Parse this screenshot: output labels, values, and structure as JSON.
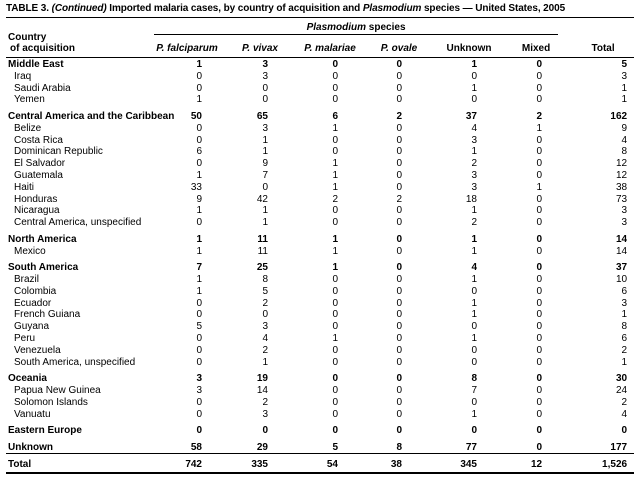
{
  "title": {
    "t1": "TABLE 3. ",
    "continued": "(Continued)",
    "t2": " Imported malaria cases, by country of acquisition and ",
    "genus": "Plasmodium",
    "t3": " species — United States, 2005"
  },
  "header": {
    "country_label_line1": "Country",
    "country_label_line2": "of acquisition",
    "species_group_label_genus": "Plasmodium",
    "species_group_label_rest": " species",
    "columns": [
      "P. falciparum",
      "P. vivax",
      "P. malariae",
      "P. ovale",
      "Unknown",
      "Mixed",
      "Total"
    ]
  },
  "rows": [
    {
      "label": "Middle East",
      "values": [
        "1",
        "3",
        "0",
        "0",
        "1",
        "0",
        "5"
      ],
      "bold": true,
      "first": true,
      "section_start": false,
      "indent": false,
      "total_row": false
    },
    {
      "label": "Iraq",
      "values": [
        "0",
        "3",
        "0",
        "0",
        "0",
        "0",
        "3"
      ],
      "bold": false,
      "first": false,
      "section_start": false,
      "indent": true,
      "total_row": false
    },
    {
      "label": "Saudi Arabia",
      "values": [
        "0",
        "0",
        "0",
        "0",
        "1",
        "0",
        "1"
      ],
      "bold": false,
      "first": false,
      "section_start": false,
      "indent": true,
      "total_row": false
    },
    {
      "label": "Yemen",
      "values": [
        "1",
        "0",
        "0",
        "0",
        "0",
        "0",
        "1"
      ],
      "bold": false,
      "first": false,
      "section_start": false,
      "indent": true,
      "total_row": false
    },
    {
      "label": "Central America and the Caribbean",
      "values": [
        "50",
        "65",
        "6",
        "2",
        "37",
        "2",
        "162"
      ],
      "bold": true,
      "first": false,
      "section_start": true,
      "indent": false,
      "total_row": false
    },
    {
      "label": "Belize",
      "values": [
        "0",
        "3",
        "1",
        "0",
        "4",
        "1",
        "9"
      ],
      "bold": false,
      "first": false,
      "section_start": false,
      "indent": true,
      "total_row": false
    },
    {
      "label": "Costa Rica",
      "values": [
        "0",
        "1",
        "0",
        "0",
        "3",
        "0",
        "4"
      ],
      "bold": false,
      "first": false,
      "section_start": false,
      "indent": true,
      "total_row": false
    },
    {
      "label": "Dominican Republic",
      "values": [
        "6",
        "1",
        "0",
        "0",
        "1",
        "0",
        "8"
      ],
      "bold": false,
      "first": false,
      "section_start": false,
      "indent": true,
      "total_row": false
    },
    {
      "label": "El Salvador",
      "values": [
        "0",
        "9",
        "1",
        "0",
        "2",
        "0",
        "12"
      ],
      "bold": false,
      "first": false,
      "section_start": false,
      "indent": true,
      "total_row": false
    },
    {
      "label": "Guatemala",
      "values": [
        "1",
        "7",
        "1",
        "0",
        "3",
        "0",
        "12"
      ],
      "bold": false,
      "first": false,
      "section_start": false,
      "indent": true,
      "total_row": false
    },
    {
      "label": "Haiti",
      "values": [
        "33",
        "0",
        "1",
        "0",
        "3",
        "1",
        "38"
      ],
      "bold": false,
      "first": false,
      "section_start": false,
      "indent": true,
      "total_row": false
    },
    {
      "label": "Honduras",
      "values": [
        "9",
        "42",
        "2",
        "2",
        "18",
        "0",
        "73"
      ],
      "bold": false,
      "first": false,
      "section_start": false,
      "indent": true,
      "total_row": false
    },
    {
      "label": "Nicaragua",
      "values": [
        "1",
        "1",
        "0",
        "0",
        "1",
        "0",
        "3"
      ],
      "bold": false,
      "first": false,
      "section_start": false,
      "indent": true,
      "total_row": false
    },
    {
      "label": "Central America, unspecified",
      "values": [
        "0",
        "1",
        "0",
        "0",
        "2",
        "0",
        "3"
      ],
      "bold": false,
      "first": false,
      "section_start": false,
      "indent": true,
      "total_row": false
    },
    {
      "label": "North America",
      "values": [
        "1",
        "11",
        "1",
        "0",
        "1",
        "0",
        "14"
      ],
      "bold": true,
      "first": false,
      "section_start": true,
      "indent": false,
      "total_row": false
    },
    {
      "label": "Mexico",
      "values": [
        "1",
        "11",
        "1",
        "0",
        "1",
        "0",
        "14"
      ],
      "bold": false,
      "first": false,
      "section_start": false,
      "indent": true,
      "total_row": false
    },
    {
      "label": "South America",
      "values": [
        "7",
        "25",
        "1",
        "0",
        "4",
        "0",
        "37"
      ],
      "bold": true,
      "first": false,
      "section_start": true,
      "indent": false,
      "total_row": false
    },
    {
      "label": "Brazil",
      "values": [
        "1",
        "8",
        "0",
        "0",
        "1",
        "0",
        "10"
      ],
      "bold": false,
      "first": false,
      "section_start": false,
      "indent": true,
      "total_row": false
    },
    {
      "label": "Colombia",
      "values": [
        "1",
        "5",
        "0",
        "0",
        "0",
        "0",
        "6"
      ],
      "bold": false,
      "first": false,
      "section_start": false,
      "indent": true,
      "total_row": false
    },
    {
      "label": "Ecuador",
      "values": [
        "0",
        "2",
        "0",
        "0",
        "1",
        "0",
        "3"
      ],
      "bold": false,
      "first": false,
      "section_start": false,
      "indent": true,
      "total_row": false
    },
    {
      "label": "French Guiana",
      "values": [
        "0",
        "0",
        "0",
        "0",
        "1",
        "0",
        "1"
      ],
      "bold": false,
      "first": false,
      "section_start": false,
      "indent": true,
      "total_row": false
    },
    {
      "label": "Guyana",
      "values": [
        "5",
        "3",
        "0",
        "0",
        "0",
        "0",
        "8"
      ],
      "bold": false,
      "first": false,
      "section_start": false,
      "indent": true,
      "total_row": false
    },
    {
      "label": "Peru",
      "values": [
        "0",
        "4",
        "1",
        "0",
        "1",
        "0",
        "6"
      ],
      "bold": false,
      "first": false,
      "section_start": false,
      "indent": true,
      "total_row": false
    },
    {
      "label": "Venezuela",
      "values": [
        "0",
        "2",
        "0",
        "0",
        "0",
        "0",
        "2"
      ],
      "bold": false,
      "first": false,
      "section_start": false,
      "indent": true,
      "total_row": false
    },
    {
      "label": "South America, unspecified",
      "values": [
        "0",
        "1",
        "0",
        "0",
        "0",
        "0",
        "1"
      ],
      "bold": false,
      "first": false,
      "section_start": false,
      "indent": true,
      "total_row": false
    },
    {
      "label": "Oceania",
      "values": [
        "3",
        "19",
        "0",
        "0",
        "8",
        "0",
        "30"
      ],
      "bold": true,
      "first": false,
      "section_start": true,
      "indent": false,
      "total_row": false
    },
    {
      "label": "Papua New Guinea",
      "values": [
        "3",
        "14",
        "0",
        "0",
        "7",
        "0",
        "24"
      ],
      "bold": false,
      "first": false,
      "section_start": false,
      "indent": true,
      "total_row": false
    },
    {
      "label": "Solomon Islands",
      "values": [
        "0",
        "2",
        "0",
        "0",
        "0",
        "0",
        "2"
      ],
      "bold": false,
      "first": false,
      "section_start": false,
      "indent": true,
      "total_row": false
    },
    {
      "label": "Vanuatu",
      "values": [
        "0",
        "3",
        "0",
        "0",
        "1",
        "0",
        "4"
      ],
      "bold": false,
      "first": false,
      "section_start": false,
      "indent": true,
      "total_row": false
    },
    {
      "label": "Eastern Europe",
      "values": [
        "0",
        "0",
        "0",
        "0",
        "0",
        "0",
        "0"
      ],
      "bold": true,
      "first": false,
      "section_start": true,
      "indent": false,
      "total_row": false
    },
    {
      "label": "Unknown",
      "values": [
        "58",
        "29",
        "5",
        "8",
        "77",
        "0",
        "177"
      ],
      "bold": true,
      "first": false,
      "section_start": true,
      "indent": false,
      "total_row": false
    },
    {
      "label": "Total",
      "values": [
        "742",
        "335",
        "54",
        "38",
        "345",
        "12",
        "1,526"
      ],
      "bold": true,
      "first": false,
      "section_start": false,
      "indent": false,
      "total_row": true
    }
  ]
}
